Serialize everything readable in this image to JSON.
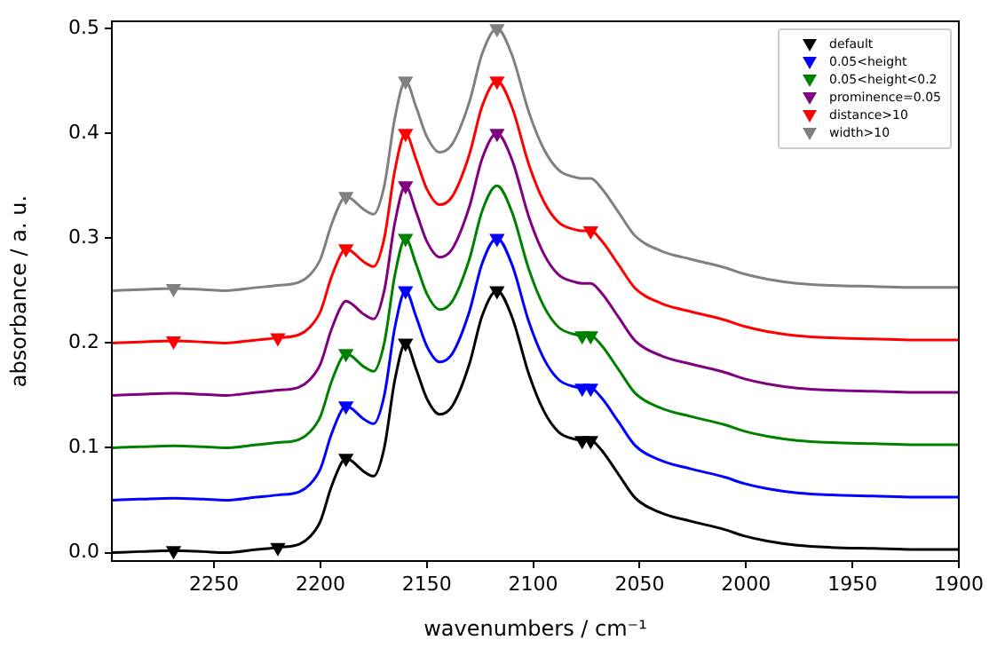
{
  "chart_data": {
    "type": "line",
    "xlabel": "wavenumbers / cm⁻¹",
    "ylabel": "absorbance / a. u.",
    "x": [
      2298,
      2285,
      2269,
      2255,
      2245,
      2230,
      2220,
      2210,
      2205,
      2200,
      2195,
      2190,
      2188,
      2185,
      2180,
      2175,
      2170,
      2165,
      2160,
      2155,
      2150,
      2144,
      2138,
      2130,
      2124,
      2117,
      2110,
      2102,
      2095,
      2088,
      2080,
      2077,
      2073,
      2068,
      2060,
      2052,
      2040,
      2026,
      2010,
      2001,
      1990,
      1976,
      1960,
      1940,
      1920,
      1900
    ],
    "series": [
      {
        "marker": "none",
        "color": "#000000",
        "values": [
          0.0,
          0.001,
          0.002,
          0.001,
          0.0,
          0.003,
          0.005,
          0.008,
          0.015,
          0.03,
          0.062,
          0.086,
          0.09,
          0.087,
          0.078,
          0.073,
          0.1,
          0.165,
          0.2,
          0.175,
          0.147,
          0.132,
          0.14,
          0.18,
          0.226,
          0.25,
          0.225,
          0.17,
          0.135,
          0.115,
          0.108,
          0.107,
          0.107,
          0.098,
          0.075,
          0.052,
          0.038,
          0.03,
          0.022,
          0.016,
          0.011,
          0.007,
          0.005,
          0.004,
          0.003,
          0.003
        ]
      },
      {
        "marker": "none",
        "color": "#0000ff",
        "values": [
          0.05,
          0.051,
          0.052,
          0.051,
          0.05,
          0.053,
          0.055,
          0.058,
          0.065,
          0.08,
          0.112,
          0.136,
          0.14,
          0.137,
          0.128,
          0.123,
          0.15,
          0.215,
          0.25,
          0.225,
          0.197,
          0.182,
          0.19,
          0.23,
          0.276,
          0.3,
          0.275,
          0.22,
          0.185,
          0.165,
          0.158,
          0.157,
          0.157,
          0.148,
          0.125,
          0.102,
          0.088,
          0.08,
          0.072,
          0.066,
          0.061,
          0.057,
          0.055,
          0.054,
          0.053,
          0.053
        ]
      },
      {
        "marker": "none",
        "color": "#008000",
        "values": [
          0.1,
          0.101,
          0.102,
          0.101,
          0.1,
          0.103,
          0.105,
          0.108,
          0.115,
          0.13,
          0.162,
          0.186,
          0.19,
          0.187,
          0.178,
          0.173,
          0.2,
          0.265,
          0.3,
          0.275,
          0.247,
          0.232,
          0.24,
          0.28,
          0.326,
          0.35,
          0.325,
          0.27,
          0.235,
          0.215,
          0.208,
          0.207,
          0.207,
          0.198,
          0.175,
          0.152,
          0.138,
          0.13,
          0.122,
          0.116,
          0.111,
          0.107,
          0.105,
          0.104,
          0.103,
          0.103
        ]
      },
      {
        "marker": "none",
        "color": "#800080",
        "values": [
          0.15,
          0.151,
          0.152,
          0.151,
          0.15,
          0.153,
          0.155,
          0.158,
          0.165,
          0.18,
          0.212,
          0.236,
          0.24,
          0.237,
          0.228,
          0.223,
          0.25,
          0.315,
          0.35,
          0.325,
          0.297,
          0.282,
          0.29,
          0.33,
          0.376,
          0.4,
          0.375,
          0.32,
          0.285,
          0.265,
          0.258,
          0.257,
          0.257,
          0.248,
          0.225,
          0.202,
          0.188,
          0.18,
          0.172,
          0.166,
          0.161,
          0.157,
          0.155,
          0.154,
          0.153,
          0.153
        ]
      },
      {
        "marker": "none",
        "color": "#ff0000",
        "values": [
          0.2,
          0.201,
          0.202,
          0.201,
          0.2,
          0.203,
          0.205,
          0.208,
          0.215,
          0.23,
          0.262,
          0.286,
          0.29,
          0.287,
          0.278,
          0.273,
          0.3,
          0.365,
          0.4,
          0.375,
          0.347,
          0.332,
          0.34,
          0.38,
          0.426,
          0.45,
          0.425,
          0.37,
          0.335,
          0.315,
          0.308,
          0.307,
          0.307,
          0.298,
          0.275,
          0.252,
          0.238,
          0.23,
          0.222,
          0.216,
          0.211,
          0.207,
          0.205,
          0.204,
          0.203,
          0.203
        ]
      },
      {
        "marker": "none",
        "color": "#808080",
        "values": [
          0.25,
          0.251,
          0.252,
          0.251,
          0.25,
          0.253,
          0.255,
          0.258,
          0.265,
          0.28,
          0.312,
          0.336,
          0.34,
          0.337,
          0.328,
          0.323,
          0.35,
          0.415,
          0.45,
          0.425,
          0.397,
          0.382,
          0.39,
          0.43,
          0.476,
          0.5,
          0.475,
          0.42,
          0.385,
          0.365,
          0.358,
          0.357,
          0.357,
          0.348,
          0.325,
          0.302,
          0.288,
          0.28,
          0.272,
          0.266,
          0.261,
          0.257,
          0.255,
          0.254,
          0.253,
          0.253
        ]
      },
      {
        "type": "scatter",
        "name": "default",
        "color": "#000000",
        "x": [
          2269,
          2220,
          2188,
          2160,
          2117,
          2077,
          2073
        ],
        "values": [
          0.002,
          0.005,
          0.09,
          0.2,
          0.25,
          0.107,
          0.107
        ]
      },
      {
        "type": "scatter",
        "name": "0.05<height",
        "color": "#0000ff",
        "x": [
          2188,
          2160,
          2117,
          2077,
          2073
        ],
        "values": [
          0.14,
          0.25,
          0.3,
          0.157,
          0.157
        ]
      },
      {
        "type": "scatter",
        "name": "0.05<height<0.2",
        "color": "#008000",
        "x": [
          2188,
          2160,
          2077,
          2073
        ],
        "values": [
          0.19,
          0.3,
          0.207,
          0.207
        ]
      },
      {
        "type": "scatter",
        "name": "prominence=0.05",
        "color": "#800080",
        "x": [
          2160,
          2117
        ],
        "values": [
          0.35,
          0.4
        ]
      },
      {
        "type": "scatter",
        "name": "distance>10",
        "color": "#ff0000",
        "x": [
          2269,
          2220,
          2188,
          2160,
          2117,
          2073
        ],
        "values": [
          0.202,
          0.205,
          0.29,
          0.4,
          0.45,
          0.307
        ]
      },
      {
        "type": "scatter",
        "name": "width>10",
        "color": "#808080",
        "x": [
          2269,
          2188,
          2160,
          2117
        ],
        "values": [
          0.252,
          0.34,
          0.45,
          0.5
        ]
      }
    ],
    "xlim": [
      2298,
      1900
    ],
    "xticks": [
      2250,
      2200,
      2150,
      2100,
      2050,
      2000,
      1950,
      1900
    ],
    "ylim": [
      -0.008,
      0.507
    ],
    "yticks": [
      {
        "value": 0,
        "label": "0.0"
      },
      {
        "value": 0.1,
        "label": "0.1"
      },
      {
        "value": 0.2,
        "label": "0.2"
      },
      {
        "value": 0.3,
        "label": "0.3"
      },
      {
        "value": 0.4,
        "label": "0.4"
      },
      {
        "value": 0.5,
        "label": "0.5"
      }
    ],
    "marker": "triangle",
    "legend": "top right",
    "grid": false
  }
}
